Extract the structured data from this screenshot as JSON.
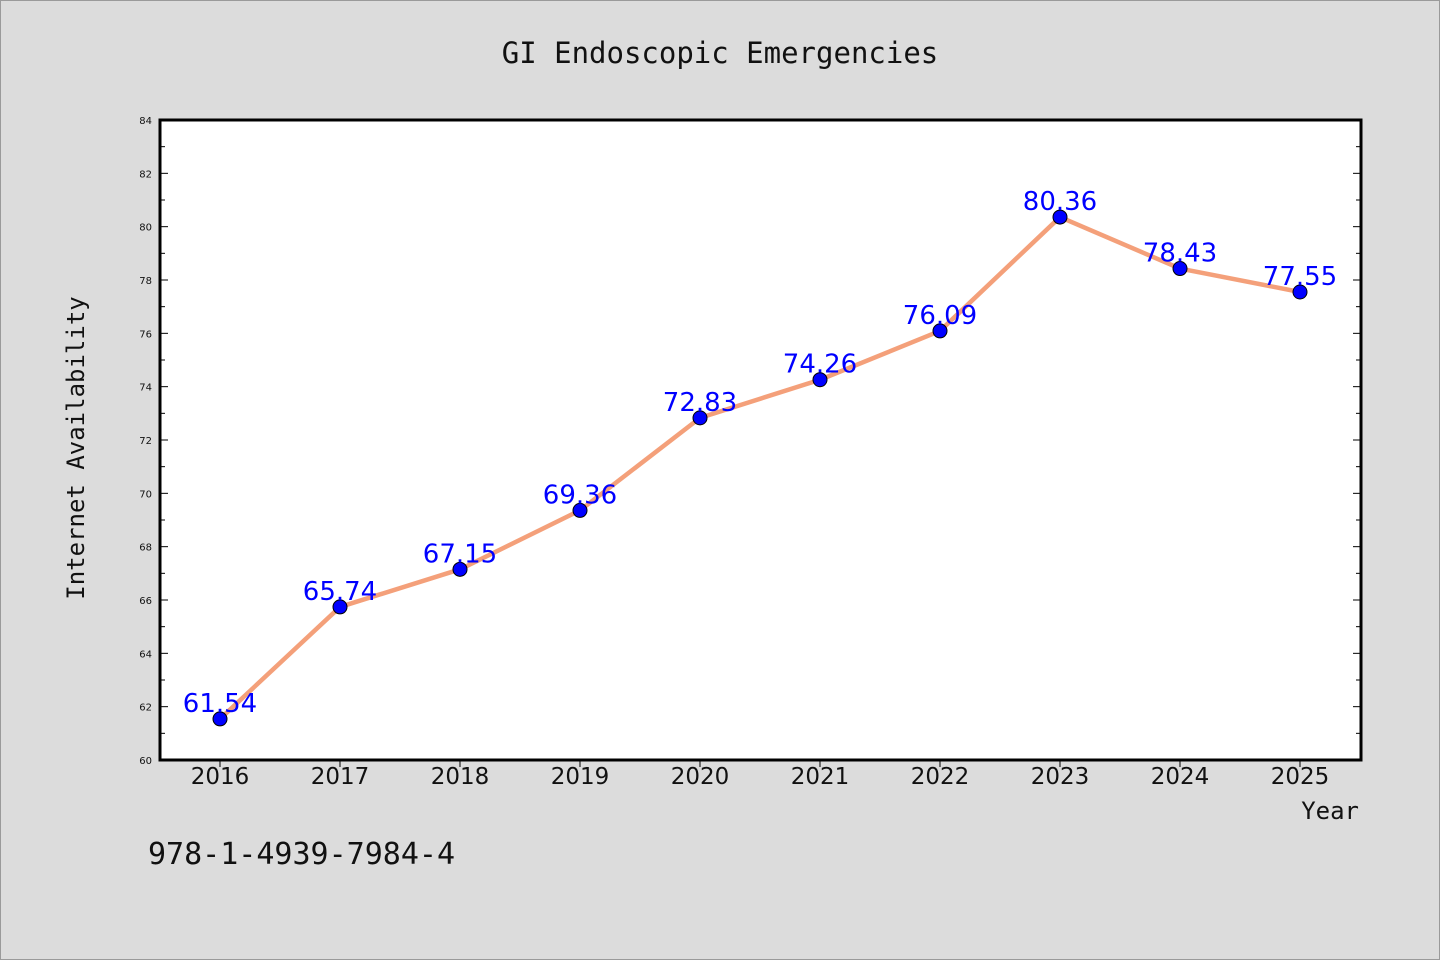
{
  "chart_data": {
    "type": "line",
    "title": "GI Endoscopic Emergencies",
    "xlabel": "Year",
    "ylabel": "Internet Availability",
    "x": [
      "2016",
      "2017",
      "2018",
      "2019",
      "2020",
      "2021",
      "2022",
      "2023",
      "2024",
      "2025"
    ],
    "values": [
      61.54,
      65.74,
      67.15,
      69.36,
      72.83,
      74.26,
      76.09,
      80.36,
      78.43,
      77.55
    ],
    "data_labels": [
      "61.54",
      "65.74",
      "67.15",
      "69.36",
      "72.83",
      "74.26",
      "76.09",
      "80.36",
      "78.43",
      "77.55"
    ],
    "ylim": [
      60,
      84
    ],
    "yticks": [
      "60",
      "62",
      "64",
      "66",
      "68",
      "70",
      "72",
      "74",
      "76",
      "78",
      "80",
      "82",
      "84"
    ],
    "grid": false,
    "line_color": "#f4a07a",
    "marker_color": "#0000ff",
    "label_color": "#0000ff"
  },
  "footer_text": "978-1-4939-7984-4"
}
